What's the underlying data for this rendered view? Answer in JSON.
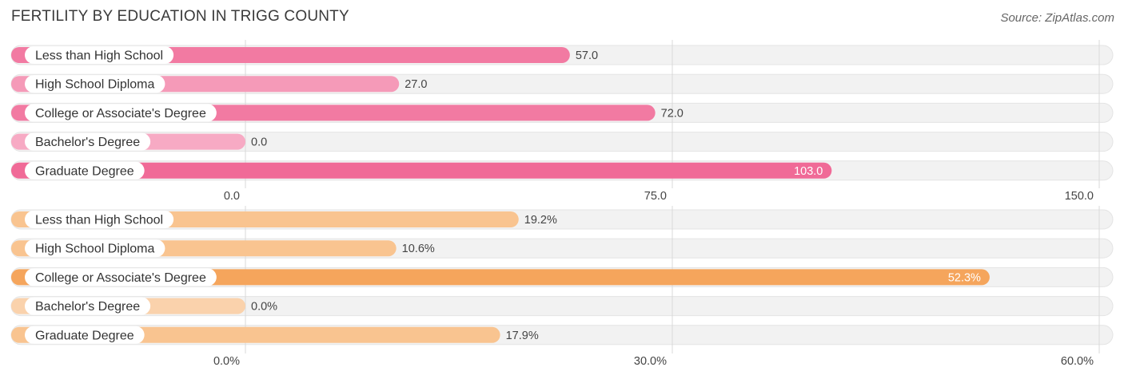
{
  "title": "FERTILITY BY EDUCATION IN TRIGG COUNTY",
  "source": "Source: ZipAtlas.com",
  "chart_data": [
    {
      "type": "bar",
      "orientation": "horizontal",
      "categories": [
        "Less than High School",
        "High School Diploma",
        "College or Associate's Degree",
        "Bachelor's Degree",
        "Graduate Degree"
      ],
      "values": [
        57.0,
        27.0,
        72.0,
        0.0,
        103.0
      ],
      "value_labels": [
        "57.0",
        "27.0",
        "72.0",
        "0.0",
        "103.0"
      ],
      "xlim": [
        0,
        150
      ],
      "ticks": [
        "0.0",
        "75.0",
        "150.0"
      ],
      "bar_colors": [
        "#f27aa2",
        "#f59ab8",
        "#f27aa2",
        "#f7aac4",
        "#f06a97"
      ],
      "label_inside": [
        false,
        false,
        false,
        false,
        true
      ]
    },
    {
      "type": "bar",
      "orientation": "horizontal",
      "categories": [
        "Less than High School",
        "High School Diploma",
        "College or Associate's Degree",
        "Bachelor's Degree",
        "Graduate Degree"
      ],
      "values": [
        19.2,
        10.6,
        52.3,
        0.0,
        17.9
      ],
      "value_labels": [
        "19.2%",
        "10.6%",
        "52.3%",
        "0.0%",
        "17.9%"
      ],
      "xlim": [
        0,
        60
      ],
      "ticks": [
        "0.0%",
        "30.0%",
        "60.0%"
      ],
      "bar_colors": [
        "#f9c490",
        "#f9c490",
        "#f5a55c",
        "#fad2ac",
        "#f9c490"
      ],
      "label_inside": [
        false,
        false,
        true,
        false,
        false
      ]
    }
  ]
}
